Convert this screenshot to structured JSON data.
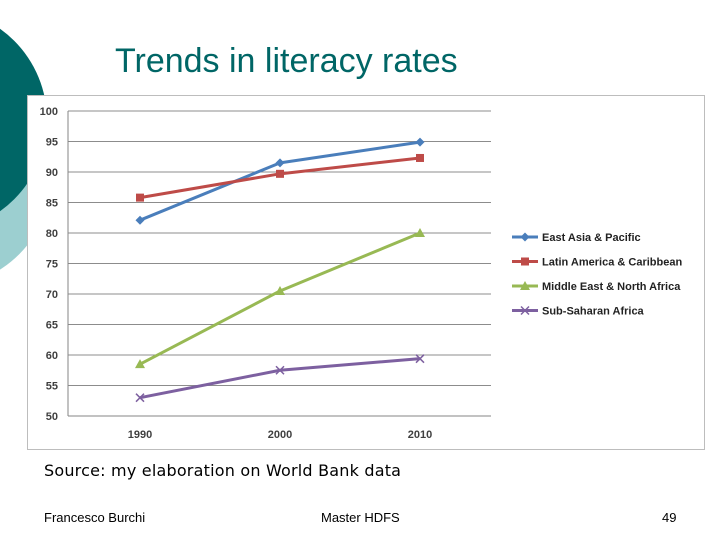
{
  "slide": {
    "title": "Trends in literacy rates",
    "source": "Source: my elaboration on World Bank data",
    "footer_left": "Francesco Burchi",
    "footer_center": "Master HDFS",
    "page_number": "49",
    "theme_colors": {
      "dark": "#006666",
      "light": "#9ccfd0"
    }
  },
  "chart_data": {
    "type": "line",
    "categories": [
      "1990",
      "2000",
      "2010"
    ],
    "ylim": [
      50,
      100
    ],
    "yticks": [
      50,
      55,
      60,
      65,
      70,
      75,
      80,
      85,
      90,
      95,
      100
    ],
    "grid": true,
    "legend_position": "right",
    "series": [
      {
        "name": "East Asia & Pacific",
        "values": [
          82.1,
          91.5,
          94.9
        ],
        "color": "#4a7ebb",
        "marker": "diamond"
      },
      {
        "name": "Latin America & Caribbean",
        "values": [
          85.8,
          89.7,
          92.3
        ],
        "color": "#be4b48",
        "marker": "square"
      },
      {
        "name": "Middle East & North Africa",
        "values": [
          58.5,
          70.5,
          80.0
        ],
        "color": "#98b954",
        "marker": "triangle"
      },
      {
        "name": "Sub-Saharan Africa",
        "values": [
          53.0,
          57.5,
          59.4
        ],
        "color": "#7d60a0",
        "marker": "x"
      }
    ]
  }
}
